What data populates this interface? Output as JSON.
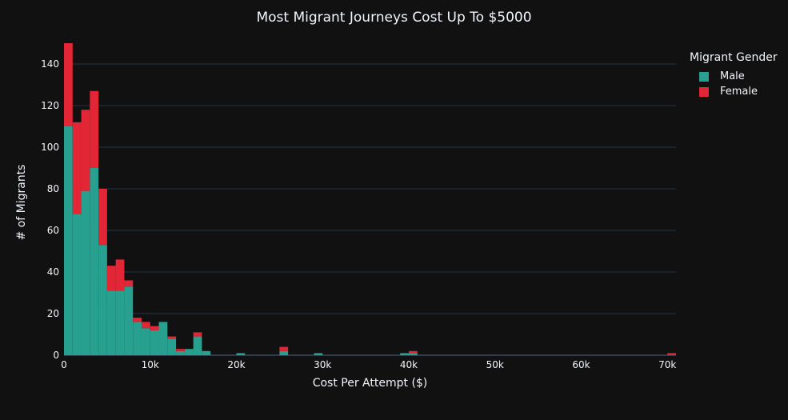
{
  "chart_data": {
    "type": "bar",
    "stacked": true,
    "title": "Most Migrant Journeys Cost Up To $5000",
    "xlabel": "Cost Per Attempt ($)",
    "ylabel": "# of Migrants",
    "xlim": [
      0,
      71000
    ],
    "ylim": [
      0,
      150
    ],
    "bin_width": 1000,
    "x_ticks": [
      0,
      10000,
      20000,
      30000,
      40000,
      50000,
      60000,
      70000
    ],
    "x_tick_labels": [
      "0",
      "10k",
      "20k",
      "30k",
      "40k",
      "50k",
      "60k",
      "70k"
    ],
    "y_ticks": [
      0,
      20,
      40,
      60,
      80,
      100,
      120,
      140
    ],
    "y_tick_labels": [
      "0",
      "20",
      "40",
      "60",
      "80",
      "100",
      "120",
      "140"
    ],
    "grid": true,
    "legend": {
      "title": "Migrant Gender",
      "position": "top-right"
    },
    "x_bin_starts": [
      0,
      1000,
      2000,
      3000,
      4000,
      5000,
      6000,
      7000,
      8000,
      9000,
      10000,
      11000,
      12000,
      13000,
      14000,
      15000,
      16000,
      20000,
      25000,
      29000,
      39000,
      40000,
      70000
    ],
    "series": [
      {
        "name": "Male",
        "color": "#27a08f",
        "values": [
          110,
          68,
          79,
          90,
          53,
          31,
          31,
          33,
          16,
          13,
          12,
          16,
          8,
          2,
          3,
          9,
          2,
          1,
          2,
          1,
          1,
          1,
          0
        ]
      },
      {
        "name": "Female",
        "color": "#e32636",
        "values": [
          40,
          44,
          39,
          37,
          27,
          12,
          15,
          3,
          2,
          3,
          2,
          0,
          1,
          1,
          0,
          2,
          0,
          0,
          2,
          0,
          0,
          1,
          1
        ]
      }
    ]
  }
}
